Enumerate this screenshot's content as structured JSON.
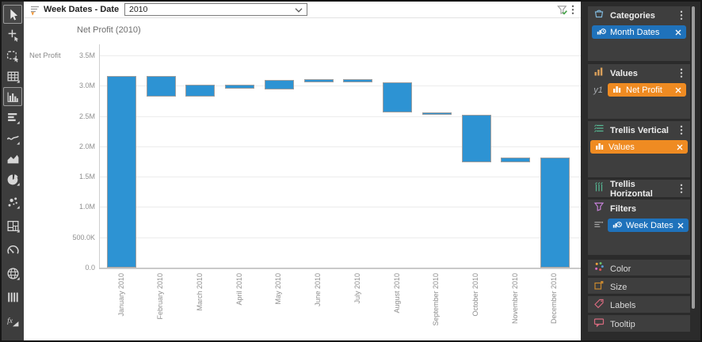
{
  "toolbar": {
    "items": [
      {
        "icon": "pointer",
        "selected": true
      },
      {
        "icon": "marking",
        "selected": false
      },
      {
        "icon": "lasso",
        "selected": false
      },
      {
        "icon": "table",
        "selected": false
      },
      {
        "icon": "column-chart",
        "selected": true
      },
      {
        "icon": "bar-chart",
        "selected": false
      },
      {
        "icon": "line-chart",
        "selected": false
      },
      {
        "icon": "area-chart",
        "selected": false
      },
      {
        "icon": "pie-chart",
        "selected": false
      },
      {
        "icon": "scatter-plot",
        "selected": false
      },
      {
        "icon": "treemap",
        "selected": false
      },
      {
        "icon": "gauge",
        "selected": false
      },
      {
        "icon": "map",
        "selected": false
      },
      {
        "icon": "parallel-coordinates",
        "selected": false
      },
      {
        "icon": "function-chart",
        "selected": false
      }
    ]
  },
  "topbar": {
    "filter_field_label": "Week Dates - Date",
    "dropdown_value": "2010"
  },
  "chart_data": {
    "type": "waterfall",
    "title": "Net Profit (2010)",
    "ylabel": "Net Profit",
    "ylim": [
      0,
      3500000
    ],
    "grid": true,
    "bar_color": "#2D93D3",
    "bar_border_color": "#9E9E9E",
    "y_ticks": [
      {
        "value": 0,
        "label": "0.0"
      },
      {
        "value": 500000,
        "label": "500.0K"
      },
      {
        "value": 1000000,
        "label": "1.0M"
      },
      {
        "value": 1500000,
        "label": "1.5M"
      },
      {
        "value": 2000000,
        "label": "2.0M"
      },
      {
        "value": 2500000,
        "label": "2.5M"
      },
      {
        "value": 3000000,
        "label": "3.0M"
      },
      {
        "value": 3500000,
        "label": "3.5M"
      }
    ],
    "categories": [
      "January 2010",
      "February 2010",
      "March 2010",
      "April 2010",
      "May 2010",
      "June 2010",
      "July 2010",
      "August 2010",
      "September 2010",
      "October 2010",
      "November 2010",
      "December 2010"
    ],
    "series": [
      {
        "name": "Net Profit",
        "bars": [
          {
            "low": 0,
            "high": 3160000
          },
          {
            "low": 2820000,
            "high": 3160000
          },
          {
            "low": 2820000,
            "high": 3020000
          },
          {
            "low": 2950000,
            "high": 3020000
          },
          {
            "low": 2940000,
            "high": 3090000
          },
          {
            "low": 3060000,
            "high": 3110000
          },
          {
            "low": 3060000,
            "high": 3110000
          },
          {
            "low": 2560000,
            "high": 3060000
          },
          {
            "low": 2520000,
            "high": 2560000
          },
          {
            "low": 1740000,
            "high": 2520000
          },
          {
            "low": 1740000,
            "high": 1820000
          },
          {
            "low": 0,
            "high": 1810000
          }
        ]
      }
    ]
  },
  "panel": {
    "categories": {
      "title": "Categories",
      "pills": [
        {
          "label": "Month Dates",
          "type": "blue"
        }
      ]
    },
    "values": {
      "title": "Values",
      "axis_tag": "y1",
      "pills": [
        {
          "label": "Net Profit",
          "type": "orange"
        }
      ]
    },
    "trellis_vertical": {
      "title": "Trellis Vertical",
      "pills": [
        {
          "label": "Values",
          "type": "orange"
        }
      ]
    },
    "trellis_horizontal": {
      "title": "Trellis Horizontal"
    },
    "filters": {
      "title": "Filters",
      "pills": [
        {
          "label": "Week Dates",
          "type": "blue"
        }
      ]
    },
    "collapsed": [
      {
        "title": "Color"
      },
      {
        "title": "Size"
      },
      {
        "title": "Labels"
      },
      {
        "title": "Tooltip"
      }
    ],
    "colors": {
      "blue_pill": "#1F72BB",
      "orange_pill": "#EF8B22"
    }
  }
}
